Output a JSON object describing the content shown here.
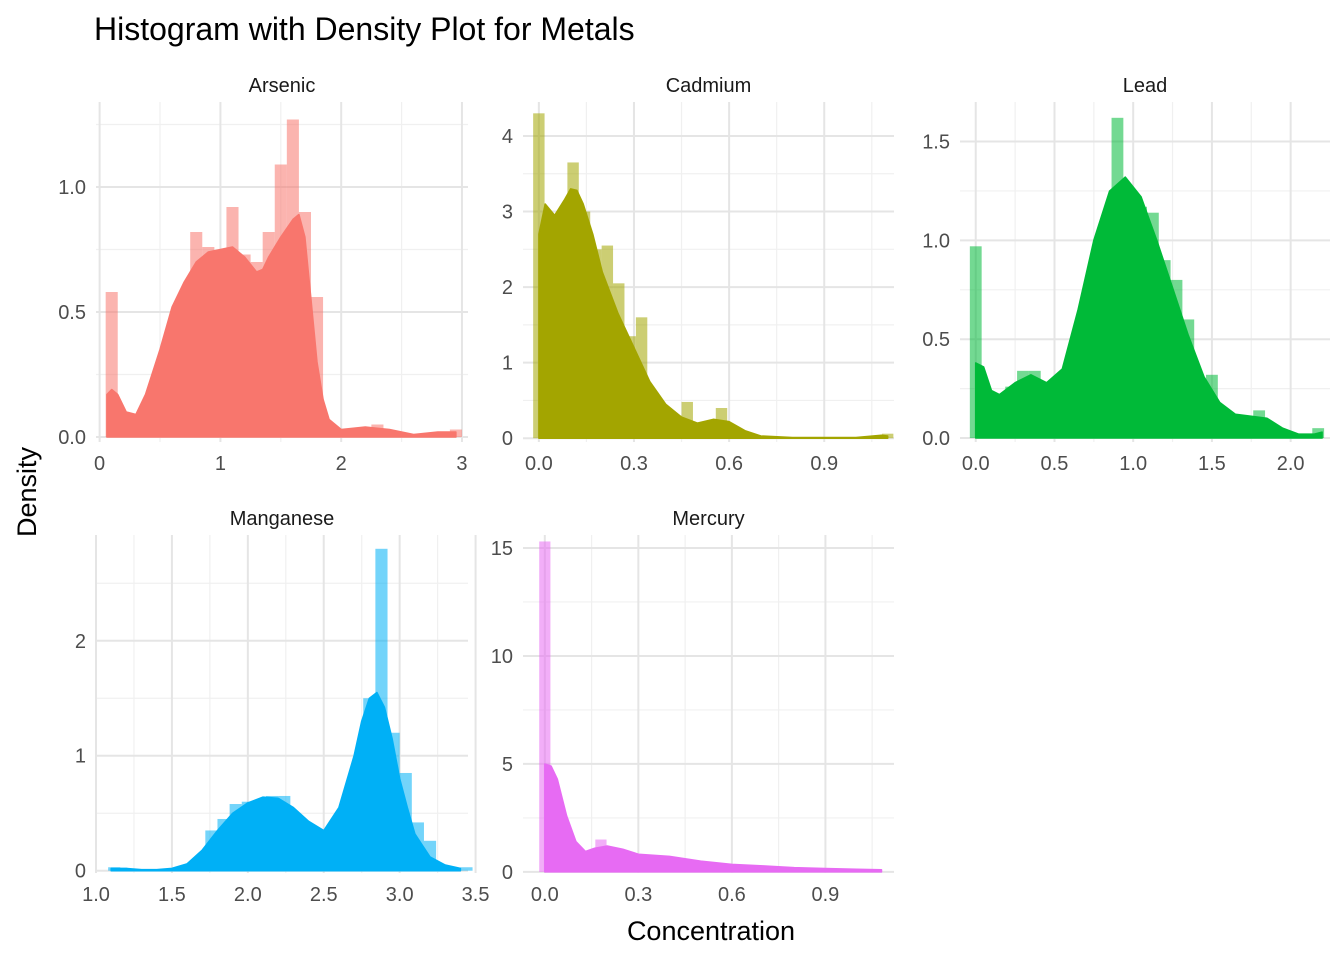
{
  "chart_data": {
    "type": "histogram-density-facets",
    "title": "Histogram with Density Plot for Metals",
    "xlabel": "Concentration",
    "ylabel": "Density",
    "panels": [
      {
        "name": "Arsenic",
        "color": "#F8766D",
        "xlim": [
          -0.03,
          3.05
        ],
        "ylim": [
          -0.02,
          1.34
        ],
        "xticks": [
          0,
          1,
          2,
          3
        ],
        "xtick_labels": [
          "0",
          "1",
          "2",
          "3"
        ],
        "yticks": [
          0,
          0.5,
          1.0
        ],
        "ytick_labels": [
          "0.0",
          "0.5",
          "1.0"
        ],
        "bar_width": 0.1,
        "hist_x": [
          0.1,
          0.5,
          0.6,
          0.8,
          0.9,
          1.1,
          1.2,
          1.3,
          1.4,
          1.5,
          1.6,
          1.7,
          1.8,
          2.3,
          2.95
        ],
        "hist_y": [
          0.58,
          0.21,
          0.31,
          0.82,
          0.76,
          0.92,
          0.73,
          0.7,
          0.82,
          1.09,
          1.27,
          0.9,
          0.56,
          0.05,
          0.03
        ],
        "density_x": [
          0.06,
          0.1,
          0.15,
          0.22,
          0.3,
          0.38,
          0.5,
          0.6,
          0.7,
          0.8,
          0.9,
          1.0,
          1.1,
          1.2,
          1.3,
          1.35,
          1.4,
          1.5,
          1.6,
          1.65,
          1.7,
          1.75,
          1.8,
          1.85,
          1.9,
          2.0,
          2.2,
          2.4,
          2.6,
          2.8,
          2.95
        ],
        "density_y": [
          0.17,
          0.19,
          0.17,
          0.1,
          0.09,
          0.17,
          0.35,
          0.52,
          0.62,
          0.7,
          0.74,
          0.75,
          0.76,
          0.72,
          0.66,
          0.67,
          0.72,
          0.8,
          0.87,
          0.89,
          0.8,
          0.55,
          0.3,
          0.15,
          0.07,
          0.03,
          0.04,
          0.03,
          0.01,
          0.02,
          0.02
        ]
      },
      {
        "name": "Cadmium",
        "color": "#A3A500",
        "xlim": [
          -0.05,
          1.12
        ],
        "ylim": [
          -0.05,
          4.45
        ],
        "xticks": [
          0,
          0.3,
          0.6,
          0.9
        ],
        "xtick_labels": [
          "0.0",
          "0.3",
          "0.6",
          "0.9"
        ],
        "yticks": [
          0,
          1,
          2,
          3,
          4
        ],
        "ytick_labels": [
          "0",
          "1",
          "2",
          "3",
          "4"
        ],
        "bar_width": 0.036,
        "hist_x": [
          0.0,
          0.036,
          0.072,
          0.108,
          0.144,
          0.18,
          0.216,
          0.252,
          0.288,
          0.324,
          0.36,
          0.432,
          0.468,
          0.576,
          1.1
        ],
        "hist_y": [
          4.3,
          2.3,
          2.3,
          3.65,
          3.0,
          2.5,
          2.55,
          2.05,
          1.35,
          1.6,
          0.6,
          0.3,
          0.48,
          0.4,
          0.06
        ],
        "density_x": [
          0.0,
          0.02,
          0.05,
          0.08,
          0.1,
          0.12,
          0.14,
          0.17,
          0.2,
          0.25,
          0.3,
          0.35,
          0.4,
          0.45,
          0.5,
          0.55,
          0.6,
          0.65,
          0.7,
          0.8,
          0.9,
          1.0,
          1.08,
          1.1
        ],
        "density_y": [
          2.7,
          3.1,
          2.95,
          3.15,
          3.3,
          3.28,
          3.1,
          2.7,
          2.2,
          1.65,
          1.2,
          0.75,
          0.45,
          0.28,
          0.2,
          0.25,
          0.22,
          0.1,
          0.03,
          0.01,
          0.01,
          0.01,
          0.04,
          0.03
        ]
      },
      {
        "name": "Lead",
        "color": "#00BA38",
        "xlim": [
          -0.1,
          2.25
        ],
        "ylim": [
          -0.02,
          1.7
        ],
        "xticks": [
          0,
          0.5,
          1.0,
          1.5,
          2.0
        ],
        "xtick_labels": [
          "0.0",
          "0.5",
          "1.0",
          "1.5",
          "2.0"
        ],
        "yticks": [
          0,
          0.5,
          1.0,
          1.5
        ],
        "ytick_labels": [
          "0.0",
          "0.5",
          "1.0",
          "1.5"
        ],
        "bar_width": 0.075,
        "hist_x": [
          0.0,
          0.225,
          0.3,
          0.375,
          0.675,
          0.825,
          0.9,
          0.975,
          1.05,
          1.125,
          1.2,
          1.275,
          1.35,
          1.5,
          1.8,
          2.175
        ],
        "hist_y": [
          0.97,
          0.26,
          0.34,
          0.34,
          0.48,
          1.07,
          1.62,
          1.2,
          1.17,
          1.14,
          0.9,
          0.8,
          0.6,
          0.32,
          0.14,
          0.05
        ],
        "density_x": [
          0.0,
          0.05,
          0.1,
          0.15,
          0.25,
          0.35,
          0.45,
          0.55,
          0.65,
          0.75,
          0.85,
          0.95,
          1.05,
          1.15,
          1.25,
          1.35,
          1.45,
          1.55,
          1.65,
          1.75,
          1.85,
          1.95,
          2.05,
          2.15,
          2.2
        ],
        "density_y": [
          0.38,
          0.36,
          0.24,
          0.22,
          0.28,
          0.32,
          0.28,
          0.35,
          0.65,
          1.0,
          1.25,
          1.32,
          1.22,
          1.0,
          0.76,
          0.52,
          0.31,
          0.18,
          0.12,
          0.11,
          0.1,
          0.05,
          0.02,
          0.02,
          0.03
        ]
      },
      {
        "name": "Manganese",
        "color": "#00B0F6",
        "xlim": [
          1.0,
          3.45
        ],
        "ylim": [
          -0.02,
          2.92
        ],
        "xticks": [
          1.0,
          1.5,
          2.0,
          2.5,
          3.0,
          3.5
        ],
        "xtick_labels": [
          "1.0",
          "1.5",
          "2.0",
          "2.5",
          "3.0",
          "3.5"
        ],
        "yticks": [
          0,
          1,
          2
        ],
        "ytick_labels": [
          "0",
          "1",
          "2"
        ],
        "bar_width": 0.08,
        "hist_x": [
          1.12,
          1.76,
          1.84,
          1.92,
          2.0,
          2.08,
          2.16,
          2.24,
          2.32,
          2.72,
          2.8,
          2.88,
          2.96,
          3.04,
          3.12,
          3.2,
          3.44
        ],
        "hist_y": [
          0.03,
          0.35,
          0.45,
          0.58,
          0.6,
          0.58,
          0.65,
          0.65,
          0.45,
          0.82,
          1.5,
          2.8,
          1.2,
          0.85,
          0.42,
          0.26,
          0.03
        ],
        "density_x": [
          1.1,
          1.2,
          1.3,
          1.4,
          1.5,
          1.6,
          1.7,
          1.8,
          1.9,
          2.0,
          2.1,
          2.2,
          2.3,
          2.4,
          2.5,
          2.6,
          2.7,
          2.75,
          2.8,
          2.85,
          2.9,
          2.95,
          3.0,
          3.05,
          3.1,
          3.2,
          3.3,
          3.4
        ],
        "density_y": [
          0.02,
          0.02,
          0.01,
          0.01,
          0.02,
          0.06,
          0.18,
          0.35,
          0.5,
          0.59,
          0.64,
          0.63,
          0.55,
          0.43,
          0.35,
          0.55,
          1.0,
          1.3,
          1.5,
          1.55,
          1.42,
          1.15,
          0.8,
          0.55,
          0.32,
          0.12,
          0.05,
          0.02
        ]
      },
      {
        "name": "Mercury",
        "color": "#E76BF3",
        "xlim": [
          -0.07,
          1.12
        ],
        "ylim": [
          -0.05,
          15.6
        ],
        "xticks": [
          0,
          0.3,
          0.6,
          0.9
        ],
        "xtick_labels": [
          "0.0",
          "0.3",
          "0.6",
          "0.9"
        ],
        "yticks": [
          0,
          5,
          10,
          15
        ],
        "ytick_labels": [
          "0",
          "5",
          "10",
          "15"
        ],
        "bar_width": 0.036,
        "hist_x": [
          0.0,
          0.036,
          0.18,
          0.216
        ],
        "hist_y": [
          15.3,
          3.5,
          1.5,
          1.1
        ],
        "density_x": [
          0.0,
          0.02,
          0.04,
          0.07,
          0.1,
          0.13,
          0.16,
          0.2,
          0.25,
          0.3,
          0.4,
          0.5,
          0.6,
          0.7,
          0.8,
          0.9,
          1.0,
          1.08
        ],
        "density_y": [
          5.0,
          4.9,
          4.3,
          2.6,
          1.4,
          0.95,
          1.1,
          1.2,
          1.05,
          0.82,
          0.72,
          0.5,
          0.35,
          0.28,
          0.2,
          0.16,
          0.12,
          0.1
        ]
      }
    ]
  }
}
